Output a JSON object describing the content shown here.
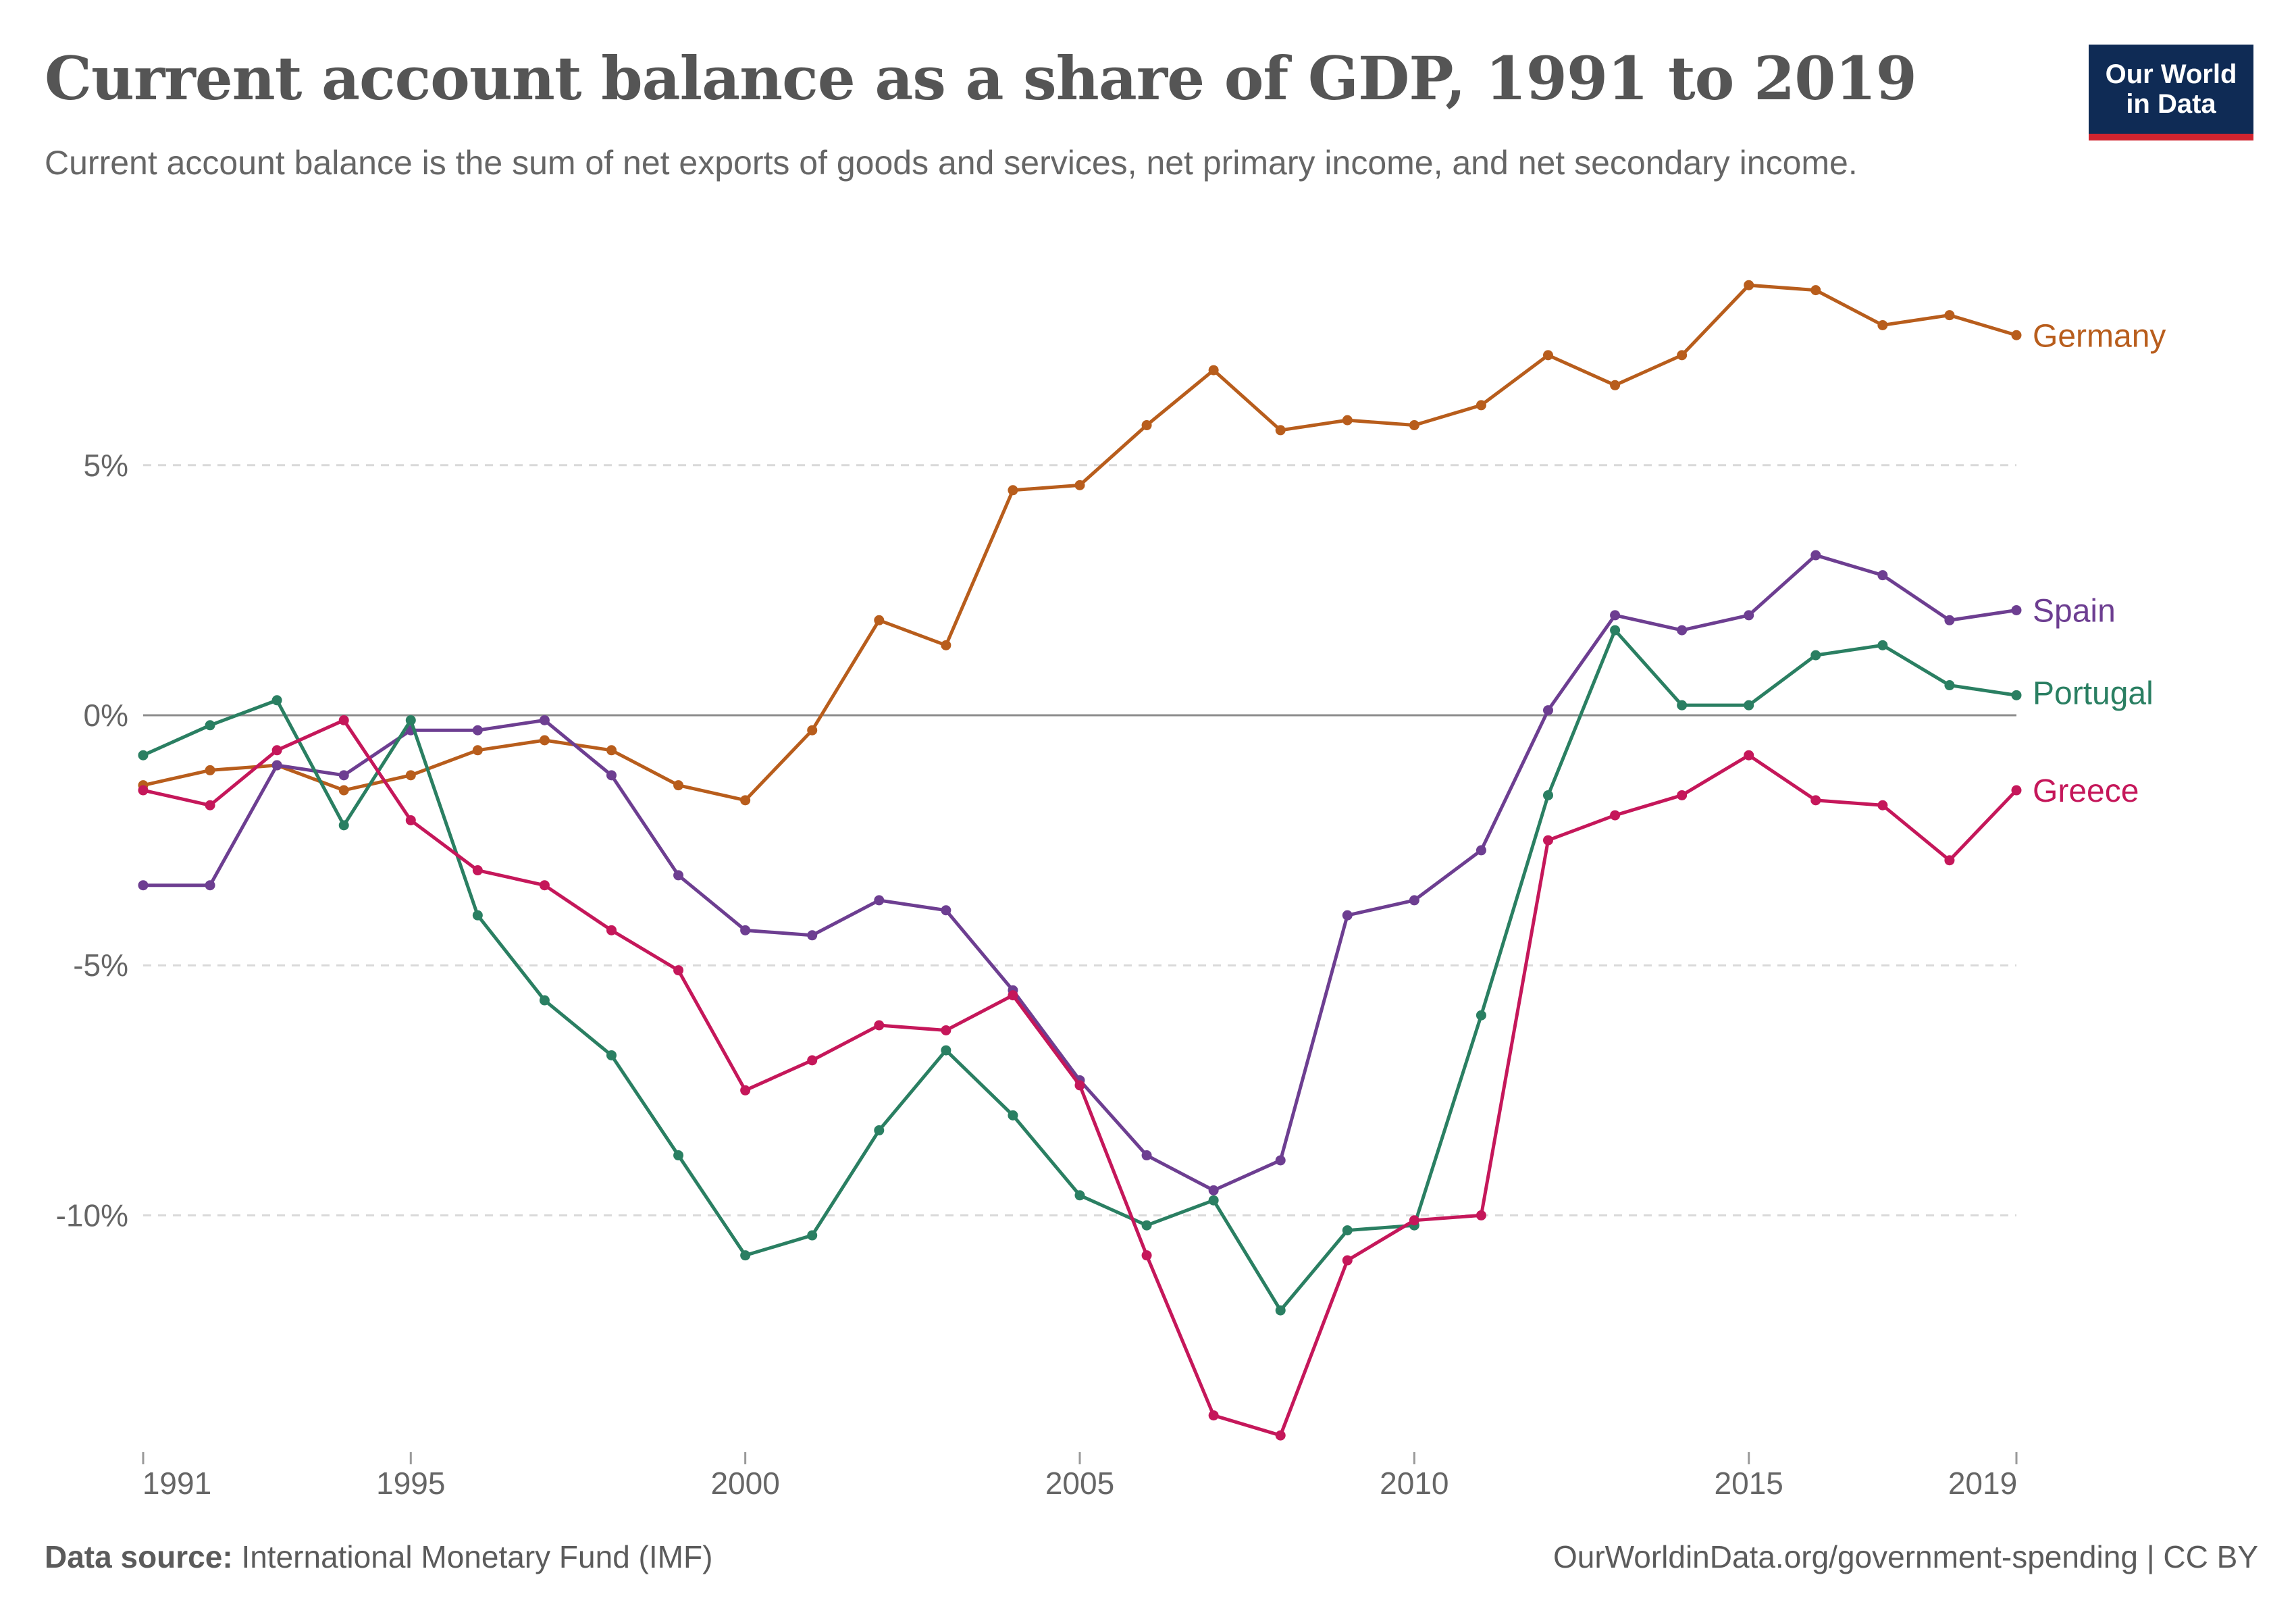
{
  "logo": {
    "line1": "Our World",
    "line2": "in Data"
  },
  "footer": {
    "source_label": "Data source:",
    "source_text": "International Monetary Fund (IMF)",
    "url": "OurWorldinData.org/government-spending",
    "license": "| CC BY"
  },
  "chart_data": {
    "type": "line",
    "title": "Current account balance as a share of GDP, 1991 to 2019",
    "subtitle": "Current account balance is the sum of net exports of goods and services, net primary income, and net secondary income.",
    "xlabel": "",
    "ylabel": "",
    "xlim": [
      1991,
      2019
    ],
    "ylim": [
      -14.6,
      8.9
    ],
    "x_ticks": [
      1991,
      1995,
      2000,
      2005,
      2010,
      2015,
      2019
    ],
    "y_ticks": [
      -10,
      -5,
      0,
      5
    ],
    "y_tick_labels": [
      "-10%",
      "-5%",
      "0%",
      "5%"
    ],
    "grid": "horizontal dashed",
    "legend": "line end labels",
    "x": [
      1991,
      1992,
      1993,
      1994,
      1995,
      1996,
      1997,
      1998,
      1999,
      2000,
      2001,
      2002,
      2003,
      2004,
      2005,
      2006,
      2007,
      2008,
      2009,
      2010,
      2011,
      2012,
      2013,
      2014,
      2015,
      2016,
      2017,
      2018,
      2019
    ],
    "series": [
      {
        "name": "Germany",
        "color": "#b85d1c",
        "values": [
          -1.4,
          -1.1,
          -1.0,
          -1.5,
          -1.2,
          -0.7,
          -0.5,
          -0.7,
          -1.4,
          -1.7,
          -0.3,
          1.9,
          1.4,
          4.5,
          4.6,
          5.8,
          6.9,
          5.7,
          5.9,
          5.8,
          6.2,
          7.2,
          6.6,
          7.2,
          8.6,
          8.5,
          7.8,
          8.0,
          7.6
        ]
      },
      {
        "name": "Spain",
        "color": "#6d3e91",
        "values": [
          -3.4,
          -3.4,
          -1.0,
          -1.2,
          -0.3,
          -0.3,
          -0.1,
          -1.2,
          -3.2,
          -4.3,
          -4.4,
          -3.7,
          -3.9,
          -5.5,
          -7.3,
          -8.8,
          -9.5,
          -8.9,
          -4.0,
          -3.7,
          -2.7,
          0.1,
          2.0,
          1.7,
          2.0,
          3.2,
          2.8,
          1.9,
          2.1
        ]
      },
      {
        "name": "Portugal",
        "color": "#2a7f62",
        "values": [
          -0.8,
          -0.2,
          0.3,
          -2.2,
          -0.1,
          -4.0,
          -5.7,
          -6.8,
          -8.8,
          -10.8,
          -10.4,
          -8.3,
          -6.7,
          -8.0,
          -9.6,
          -10.2,
          -9.7,
          -11.9,
          -10.3,
          -10.2,
          -6.0,
          -1.6,
          1.7,
          0.2,
          0.2,
          1.2,
          1.4,
          0.6,
          0.4
        ]
      },
      {
        "name": "Greece",
        "color": "#c5175a",
        "values": [
          -1.5,
          -1.8,
          -0.7,
          -0.1,
          -2.1,
          -3.1,
          -3.4,
          -4.3,
          -5.1,
          -7.5,
          -6.9,
          -6.2,
          -6.3,
          -5.6,
          -7.4,
          -10.8,
          -14.0,
          -14.4,
          -10.9,
          -10.1,
          -10.0,
          -2.5,
          -2.0,
          -1.6,
          -0.8,
          -1.7,
          -1.8,
          -2.9,
          -1.5
        ]
      }
    ]
  }
}
